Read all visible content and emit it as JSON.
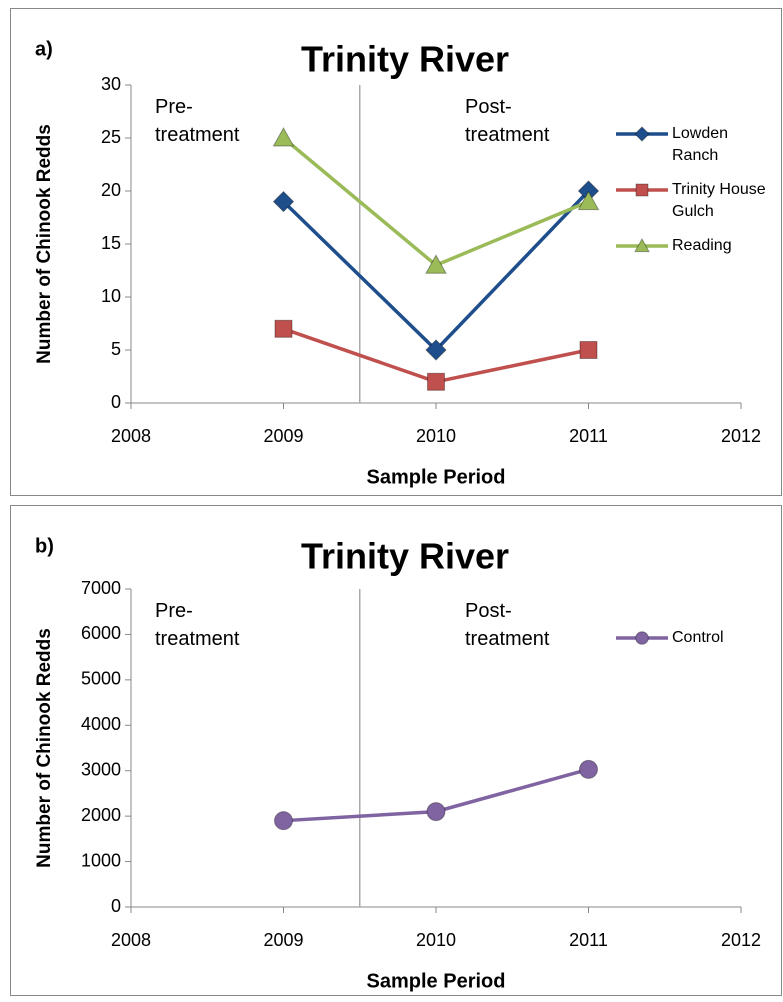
{
  "chart_data": [
    {
      "type": "line",
      "panel_label": "a)",
      "title": "Trinity River",
      "x_label": "Sample Period",
      "y_label": "Number of Chinook Redds",
      "x": [
        2009,
        2010,
        2011
      ],
      "xlim": [
        2008,
        2012
      ],
      "xticks": [
        2008,
        2009,
        2010,
        2011,
        2012
      ],
      "ylim": [
        0,
        30
      ],
      "yticks": [
        0,
        5,
        10,
        15,
        20,
        25,
        30
      ],
      "vline": 2009.5,
      "annotations": [
        "Pre-treatment",
        "Post-treatment"
      ],
      "legend": "right",
      "series": [
        {
          "name": "Lowden Ranch",
          "color": "#1f4e8c",
          "marker": "diamond",
          "values": [
            19,
            5,
            20
          ]
        },
        {
          "name": "Trinity House Gulch",
          "color": "#c0504d",
          "marker": "square",
          "values": [
            7,
            2,
            5
          ]
        },
        {
          "name": "Reading",
          "color": "#9bbb59",
          "marker": "triangle",
          "values": [
            25,
            13,
            19
          ]
        }
      ]
    },
    {
      "type": "line",
      "panel_label": "b)",
      "title": "Trinity River",
      "x_label": "Sample Period",
      "y_label": "Number of Chinook Redds",
      "x": [
        2009,
        2010,
        2011
      ],
      "xlim": [
        2008,
        2012
      ],
      "xticks": [
        2008,
        2009,
        2010,
        2011,
        2012
      ],
      "ylim": [
        0,
        7000
      ],
      "yticks": [
        0,
        1000,
        2000,
        3000,
        4000,
        5000,
        6000,
        7000
      ],
      "vline": 2009.5,
      "annotations": [
        "Pre-treatment",
        "Post-treatment"
      ],
      "legend": "right",
      "series": [
        {
          "name": "Control",
          "color": "#8064a2",
          "marker": "circle",
          "values": [
            1900,
            2100,
            3030
          ]
        }
      ]
    }
  ]
}
